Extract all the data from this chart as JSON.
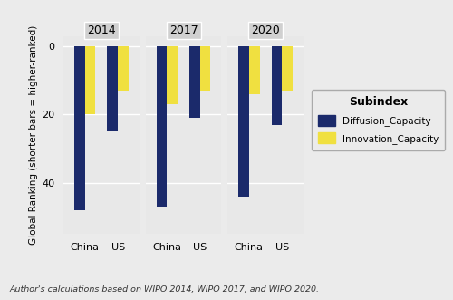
{
  "years": [
    "2014",
    "2017",
    "2020"
  ],
  "countries": [
    "China",
    "US"
  ],
  "diffusion": {
    "2014": {
      "China": -48,
      "US": -25
    },
    "2017": {
      "China": -47,
      "US": -21
    },
    "2020": {
      "China": -44,
      "US": -23
    }
  },
  "innovation": {
    "2014": {
      "China": -20,
      "US": -13
    },
    "2017": {
      "China": -17,
      "US": -13
    },
    "2020": {
      "China": -14,
      "US": -13
    }
  },
  "diffusion_color": "#1B2A6B",
  "innovation_color": "#F0E040",
  "background_color": "#EBEBEB",
  "panel_bg": "#E8E8E8",
  "strip_bg": "#D0D0D0",
  "ylabel": "Global Ranking (shorter bars = higher-ranked)",
  "caption": "Author's calculations based on WIPO 2014, WIPO 2017, and WIPO 2020.",
  "legend_title": "Subindex",
  "legend_labels": [
    "Diffusion_Capacity",
    "Innovation_Capacity"
  ],
  "yticks": [
    0,
    -20,
    -40
  ],
  "ylim": [
    -55,
    3
  ],
  "bar_width": 0.32
}
